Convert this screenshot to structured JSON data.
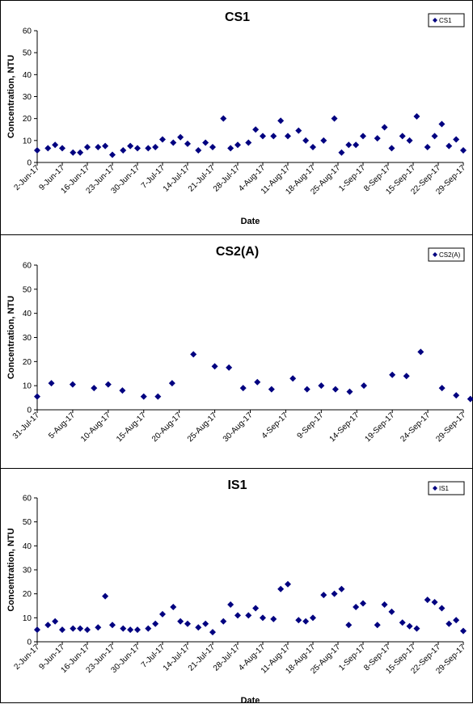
{
  "chart_data": [
    {
      "type": "scatter",
      "title": "CS1",
      "xlabel": "Date",
      "ylabel": "Concentration, NTU",
      "ylim": [
        0,
        60
      ],
      "yticks": [
        0,
        10,
        20,
        30,
        40,
        50,
        60
      ],
      "xlim": [
        "2-Jun-17",
        "29-Sep-17"
      ],
      "xticks": [
        "2-Jun-17",
        "9-Jun-17",
        "16-Jun-17",
        "23-Jun-17",
        "30-Jun-17",
        "7-Jul-17",
        "14-Jul-17",
        "21-Jul-17",
        "28-Jul-17",
        "4-Aug-17",
        "11-Aug-17",
        "18-Aug-17",
        "25-Aug-17",
        "1-Sep-17",
        "8-Sep-17",
        "15-Sep-17",
        "22-Sep-17",
        "29-Sep-17"
      ],
      "legend": {
        "position": "top-right",
        "entries": [
          "CS1"
        ]
      },
      "marker_color": "#000080",
      "series": [
        {
          "name": "CS1",
          "x": [
            "2-Jun-17",
            "5-Jun-17",
            "7-Jun-17",
            "9-Jun-17",
            "12-Jun-17",
            "14-Jun-17",
            "16-Jun-17",
            "19-Jun-17",
            "21-Jun-17",
            "23-Jun-17",
            "26-Jun-17",
            "28-Jun-17",
            "30-Jun-17",
            "3-Jul-17",
            "5-Jul-17",
            "7-Jul-17",
            "10-Jul-17",
            "12-Jul-17",
            "14-Jul-17",
            "17-Jul-17",
            "19-Jul-17",
            "21-Jul-17",
            "24-Jul-17",
            "26-Jul-17",
            "28-Jul-17",
            "31-Jul-17",
            "2-Aug-17",
            "4-Aug-17",
            "7-Aug-17",
            "9-Aug-17",
            "11-Aug-17",
            "14-Aug-17",
            "16-Aug-17",
            "18-Aug-17",
            "21-Aug-17",
            "24-Aug-17",
            "26-Aug-17",
            "28-Aug-17",
            "30-Aug-17",
            "1-Sep-17",
            "5-Sep-17",
            "7-Sep-17",
            "9-Sep-17",
            "12-Sep-17",
            "14-Sep-17",
            "16-Sep-17",
            "19-Sep-17",
            "21-Sep-17",
            "23-Sep-17",
            "25-Sep-17",
            "27-Sep-17",
            "29-Sep-17"
          ],
          "y": [
            5.5,
            6.5,
            8,
            6.5,
            4.5,
            4.5,
            7,
            7,
            7.5,
            3.5,
            5.5,
            7.5,
            6.5,
            6.5,
            7,
            10.5,
            9,
            11.5,
            8.5,
            5.5,
            9,
            7,
            20,
            6.5,
            8,
            9,
            15,
            12,
            12,
            19,
            12,
            14.5,
            10,
            7,
            10,
            20,
            4.5,
            8,
            8,
            12,
            11,
            16,
            6.5,
            12,
            10,
            21,
            7,
            12,
            17.5,
            7.5,
            10.5,
            5.5
          ]
        }
      ]
    },
    {
      "type": "scatter",
      "title": "CS2(A)",
      "xlabel": "",
      "ylabel": "Concentration, NTU",
      "ylim": [
        0,
        60
      ],
      "yticks": [
        0,
        10,
        20,
        30,
        40,
        50,
        60
      ],
      "xlim": [
        "31-Jul-17",
        "29-Sep-17"
      ],
      "xticks": [
        "31-Jul-17",
        "5-Aug-17",
        "10-Aug-17",
        "15-Aug-17",
        "20-Aug-17",
        "25-Aug-17",
        "30-Aug-17",
        "4-Sep-17",
        "9-Sep-17",
        "14-Sep-17",
        "19-Sep-17",
        "24-Sep-17",
        "29-Sep-17"
      ],
      "legend": {
        "position": "top-right",
        "entries": [
          "CS2(A)"
        ]
      },
      "marker_color": "#000080",
      "series": [
        {
          "name": "CS2(A)",
          "x": [
            "31-Jul-17",
            "2-Aug-17",
            "5-Aug-17",
            "8-Aug-17",
            "10-Aug-17",
            "12-Aug-17",
            "15-Aug-17",
            "17-Aug-17",
            "19-Aug-17",
            "22-Aug-17",
            "25-Aug-17",
            "27-Aug-17",
            "29-Aug-17",
            "31-Aug-17",
            "2-Sep-17",
            "5-Sep-17",
            "7-Sep-17",
            "9-Sep-17",
            "11-Sep-17",
            "13-Sep-17",
            "15-Sep-17",
            "19-Sep-17",
            "21-Sep-17",
            "23-Sep-17",
            "26-Sep-17",
            "28-Sep-17",
            "30-Sep-17"
          ],
          "y": [
            5.5,
            11,
            10.5,
            9,
            10.5,
            8,
            5.5,
            5.5,
            11,
            23,
            18,
            17.5,
            9,
            11.5,
            8.5,
            13,
            8.5,
            10,
            8.5,
            7.5,
            10,
            14.5,
            14,
            24,
            9,
            6,
            4.5
          ]
        }
      ]
    },
    {
      "type": "scatter",
      "title": "IS1",
      "xlabel": "Date",
      "ylabel": "Concentration, NTU",
      "ylim": [
        0,
        60
      ],
      "yticks": [
        0,
        10,
        20,
        30,
        40,
        50,
        60
      ],
      "xlim": [
        "2-Jun-17",
        "29-Sep-17"
      ],
      "xticks": [
        "2-Jun-17",
        "9-Jun-17",
        "16-Jun-17",
        "23-Jun-17",
        "30-Jun-17",
        "7-Jul-17",
        "14-Jul-17",
        "21-Jul-17",
        "28-Jul-17",
        "4-Aug-17",
        "11-Aug-17",
        "18-Aug-17",
        "25-Aug-17",
        "1-Sep-17",
        "8-Sep-17",
        "15-Sep-17",
        "22-Sep-17",
        "29-Sep-17"
      ],
      "legend": {
        "position": "top-right",
        "entries": [
          "IS1"
        ]
      },
      "marker_color": "#000080",
      "series": [
        {
          "name": "IS1",
          "x": [
            "2-Jun-17",
            "5-Jun-17",
            "7-Jun-17",
            "9-Jun-17",
            "12-Jun-17",
            "14-Jun-17",
            "16-Jun-17",
            "19-Jun-17",
            "21-Jun-17",
            "23-Jun-17",
            "26-Jun-17",
            "28-Jun-17",
            "30-Jun-17",
            "3-Jul-17",
            "5-Jul-17",
            "7-Jul-17",
            "10-Jul-17",
            "12-Jul-17",
            "14-Jul-17",
            "17-Jul-17",
            "19-Jul-17",
            "21-Jul-17",
            "24-Jul-17",
            "26-Jul-17",
            "28-Jul-17",
            "31-Jul-17",
            "2-Aug-17",
            "4-Aug-17",
            "7-Aug-17",
            "9-Aug-17",
            "11-Aug-17",
            "14-Aug-17",
            "16-Aug-17",
            "18-Aug-17",
            "21-Aug-17",
            "24-Aug-17",
            "26-Aug-17",
            "28-Aug-17",
            "30-Aug-17",
            "1-Sep-17",
            "5-Sep-17",
            "7-Sep-17",
            "9-Sep-17",
            "12-Sep-17",
            "14-Sep-17",
            "16-Sep-17",
            "19-Sep-17",
            "21-Sep-17",
            "23-Sep-17",
            "25-Sep-17",
            "27-Sep-17",
            "29-Sep-17"
          ],
          "y": [
            5,
            7,
            8.5,
            5,
            5.5,
            5.5,
            5,
            6,
            19,
            7,
            5.5,
            5,
            5,
            5.5,
            7.5,
            11.5,
            14.5,
            8.5,
            7.5,
            6,
            7.5,
            4,
            8.5,
            15.5,
            11,
            11,
            14,
            10,
            9.5,
            22,
            24,
            9,
            8.5,
            10,
            19.5,
            20,
            22,
            7,
            14.5,
            16,
            7,
            15.5,
            12.5,
            8,
            6.5,
            5.5,
            17.5,
            16.5,
            14,
            7.5,
            9,
            4.5
          ]
        }
      ]
    }
  ]
}
